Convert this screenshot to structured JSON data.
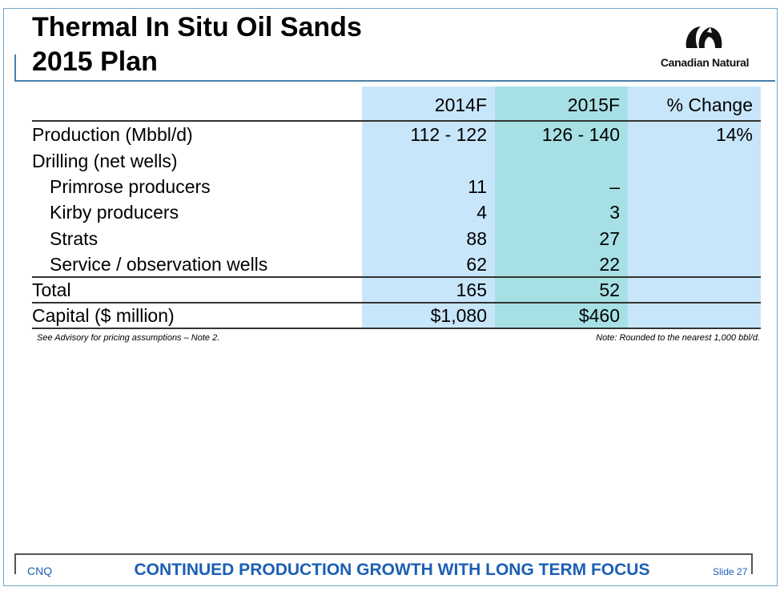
{
  "title": {
    "line1": "Thermal In Situ Oil Sands",
    "line2": "2015 Plan"
  },
  "logo": {
    "text": "Canadian Natural",
    "icon": "canadian-natural-logo-icon"
  },
  "table": {
    "headers": [
      "2014F",
      "2015F",
      "% Change"
    ],
    "rows": [
      {
        "label": "Production (Mbbl/d)",
        "c2014": "112 - 122",
        "c2015": "126 - 140",
        "change": "14%"
      },
      {
        "label": "Drilling (net wells)",
        "c2014": "",
        "c2015": "",
        "change": ""
      },
      {
        "label": "Primrose producers",
        "c2014": "11",
        "c2015": "–",
        "change": ""
      },
      {
        "label": "Kirby producers",
        "c2014": "4",
        "c2015": "3",
        "change": ""
      },
      {
        "label": "Strats",
        "c2014": "88",
        "c2015": "27",
        "change": ""
      },
      {
        "label": "Service / observation wells",
        "c2014": "62",
        "c2015": "22",
        "change": ""
      },
      {
        "label": "Total",
        "c2014": "165",
        "c2015": "52",
        "change": ""
      },
      {
        "label": "Capital ($ million)",
        "c2014": "$1,080",
        "c2015": "$460",
        "change": ""
      }
    ],
    "colors": {
      "col2014": "#c8e6fa",
      "col2015": "#a6e0e4",
      "colChange": "#c8e6fa"
    }
  },
  "notes": {
    "left": "See Advisory for pricing assumptions – Note 2.",
    "right": "Note: Rounded to the nearest 1,000 bbl/d."
  },
  "footer": {
    "left": "CNQ",
    "center": "CONTINUED PRODUCTION GROWTH WITH LONG TERM FOCUS",
    "right": "Slide 27",
    "color": "#1b5fb5"
  }
}
